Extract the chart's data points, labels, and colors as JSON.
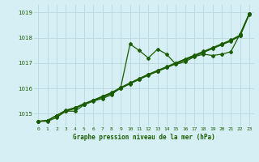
{
  "title": "Graphe pression niveau de la mer (hPa)",
  "x_labels": [
    "0",
    "1",
    "2",
    "3",
    "4",
    "5",
    "6",
    "7",
    "8",
    "9",
    "10",
    "11",
    "12",
    "13",
    "14",
    "15",
    "16",
    "17",
    "18",
    "19",
    "20",
    "21",
    "22",
    "23"
  ],
  "ylim": [
    1014.5,
    1019.3
  ],
  "yticks": [
    1015,
    1016,
    1017,
    1018,
    1019
  ],
  "background_color": "#d6eff5",
  "grid_color": "#b8d8e0",
  "line_color": "#1a5c00",
  "series": {
    "main": [
      1014.7,
      1014.7,
      1014.85,
      1015.1,
      1015.1,
      1015.35,
      1015.5,
      1015.6,
      1015.75,
      1016.05,
      1017.75,
      1017.5,
      1017.2,
      1017.55,
      1017.35,
      1016.95,
      1017.05,
      1017.25,
      1017.35,
      1017.3,
      1017.35,
      1017.45,
      1018.15,
      1018.95
    ],
    "trend1": [
      1014.7,
      1014.73,
      1014.93,
      1015.1,
      1015.2,
      1015.38,
      1015.52,
      1015.65,
      1015.8,
      1016.0,
      1016.18,
      1016.35,
      1016.52,
      1016.67,
      1016.82,
      1016.97,
      1017.12,
      1017.27,
      1017.42,
      1017.57,
      1017.72,
      1017.87,
      1018.07,
      1018.92
    ],
    "trend2": [
      1014.7,
      1014.73,
      1014.93,
      1015.12,
      1015.22,
      1015.38,
      1015.52,
      1015.67,
      1015.82,
      1016.02,
      1016.2,
      1016.37,
      1016.54,
      1016.69,
      1016.84,
      1016.99,
      1017.14,
      1017.29,
      1017.44,
      1017.59,
      1017.74,
      1017.89,
      1018.09,
      1018.94
    ],
    "trend3": [
      1014.7,
      1014.73,
      1014.93,
      1015.14,
      1015.24,
      1015.4,
      1015.54,
      1015.69,
      1015.84,
      1016.04,
      1016.22,
      1016.39,
      1016.56,
      1016.71,
      1016.86,
      1017.01,
      1017.16,
      1017.31,
      1017.46,
      1017.61,
      1017.76,
      1017.91,
      1018.11,
      1018.96
    ]
  },
  "marker": "D",
  "markersize": 2.0,
  "linewidth": 0.9
}
